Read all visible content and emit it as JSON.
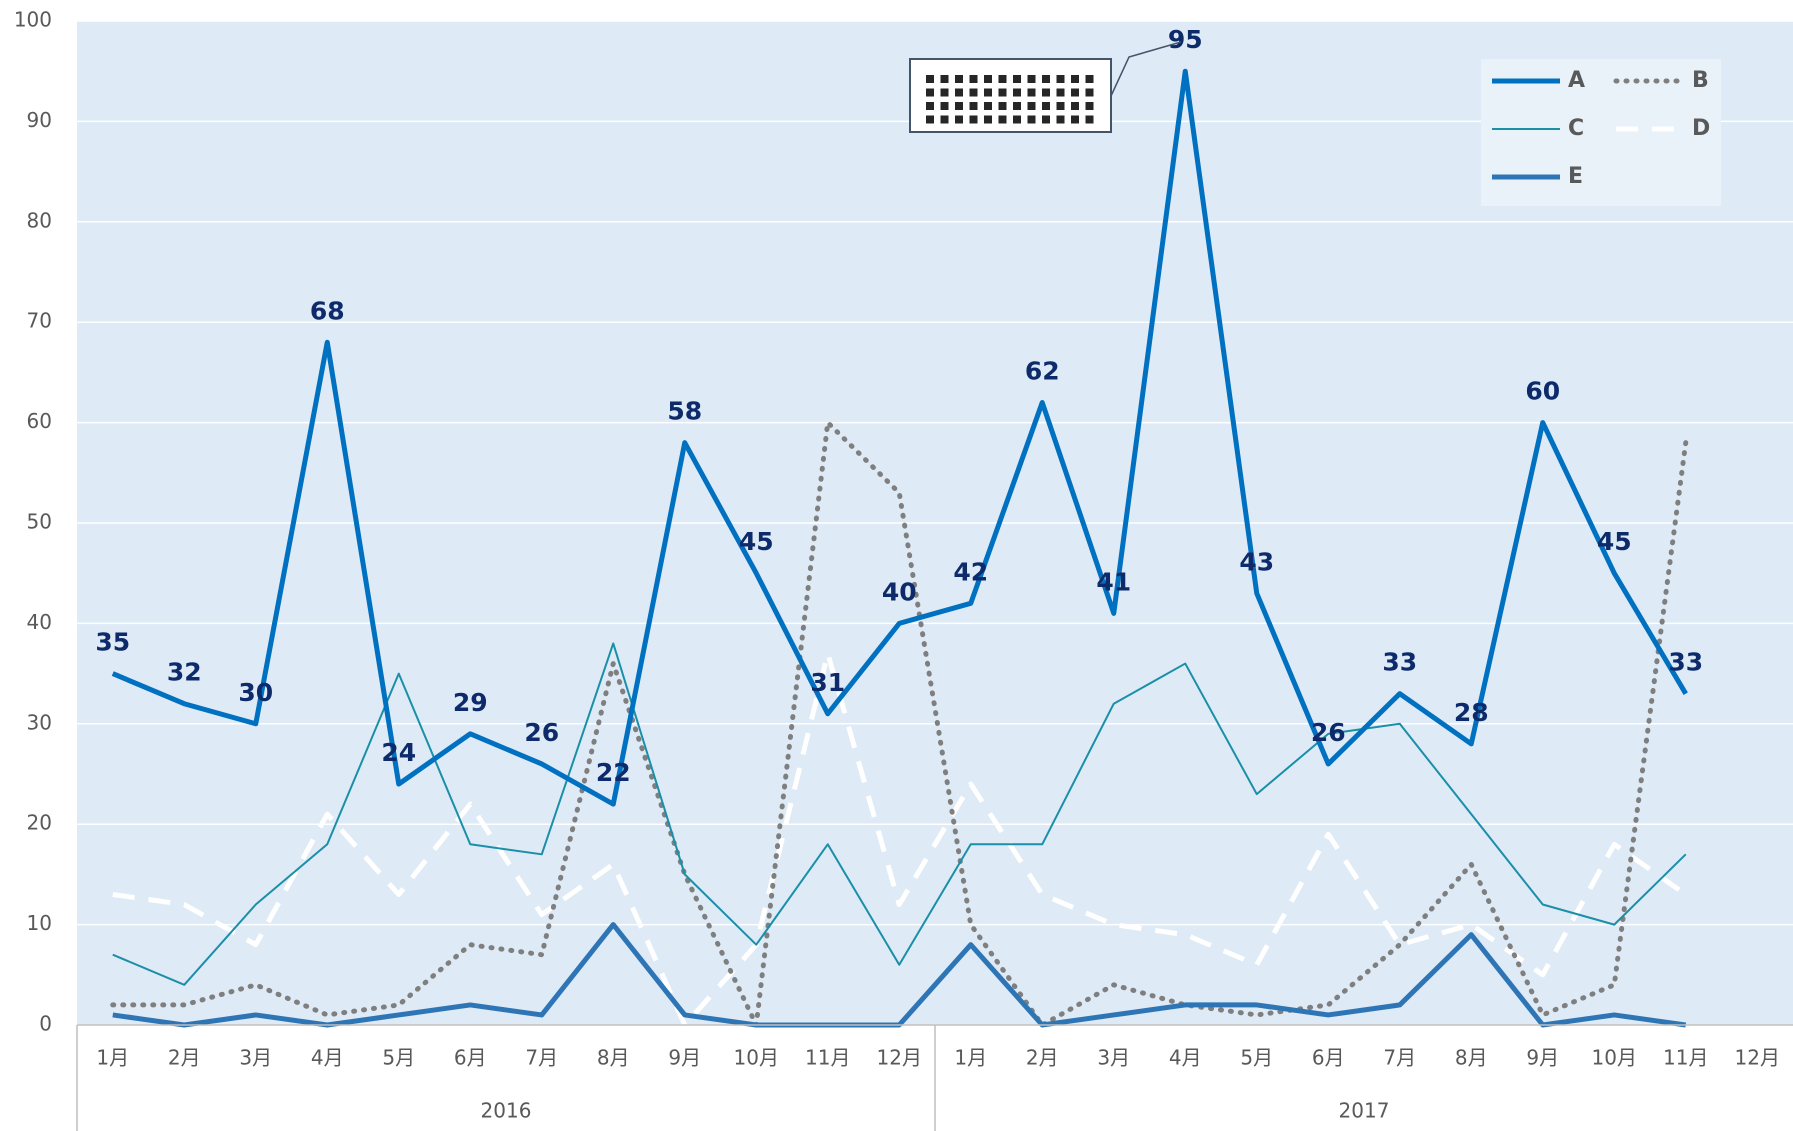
{
  "chart_data": {
    "type": "line",
    "categories": [
      "1月",
      "2月",
      "3月",
      "4月",
      "5月",
      "6月",
      "7月",
      "8月",
      "9月",
      "10月",
      "11月",
      "12月",
      "1月",
      "2月",
      "3月",
      "4月",
      "5月",
      "6月",
      "7月",
      "8月",
      "9月",
      "10月",
      "11月",
      "12月"
    ],
    "year_groups": [
      "2016",
      "2017"
    ],
    "ylim": [
      0,
      100
    ],
    "yticks": [
      0,
      10,
      20,
      30,
      40,
      50,
      60,
      70,
      80,
      90,
      100
    ],
    "grid": true,
    "legend": "top-right",
    "series": [
      {
        "name": "A",
        "color": "#0070c0",
        "dash": "solid",
        "weight": "heavy",
        "data_labels": true,
        "values": [
          35,
          32,
          30,
          68,
          24,
          29,
          26,
          22,
          58,
          45,
          31,
          40,
          42,
          62,
          41,
          95,
          43,
          26,
          33,
          28,
          60,
          45,
          33,
          null
        ]
      },
      {
        "name": "B",
        "color": "#7f7f7f",
        "dash": "dotted",
        "weight": "heavy",
        "values": [
          2,
          2,
          4,
          1,
          2,
          8,
          7,
          36,
          15,
          0,
          60,
          53,
          10,
          0,
          4,
          2,
          1,
          2,
          8,
          16,
          1,
          4,
          58,
          null
        ]
      },
      {
        "name": "C",
        "color": "#1a8fa8",
        "dash": "solid",
        "weight": "light",
        "values": [
          7,
          4,
          12,
          18,
          35,
          18,
          17,
          38,
          15,
          8,
          18,
          6,
          18,
          18,
          32,
          36,
          23,
          29,
          30,
          21,
          12,
          10,
          17,
          null
        ]
      },
      {
        "name": "D",
        "color": "#ffffff",
        "dash": "dashed",
        "weight": "heavy",
        "values": [
          13,
          12,
          8,
          21,
          13,
          22,
          11,
          16,
          0,
          8,
          37,
          12,
          24,
          13,
          10,
          9,
          6,
          19,
          8,
          10,
          5,
          18,
          13,
          null
        ]
      },
      {
        "name": "E",
        "color": "#2e75b6",
        "dash": "solid",
        "weight": "heavy",
        "values": [
          1,
          0,
          1,
          0,
          1,
          2,
          1,
          10,
          1,
          0,
          0,
          0,
          8,
          0,
          1,
          2,
          2,
          1,
          2,
          9,
          0,
          1,
          0,
          null
        ]
      }
    ]
  }
}
